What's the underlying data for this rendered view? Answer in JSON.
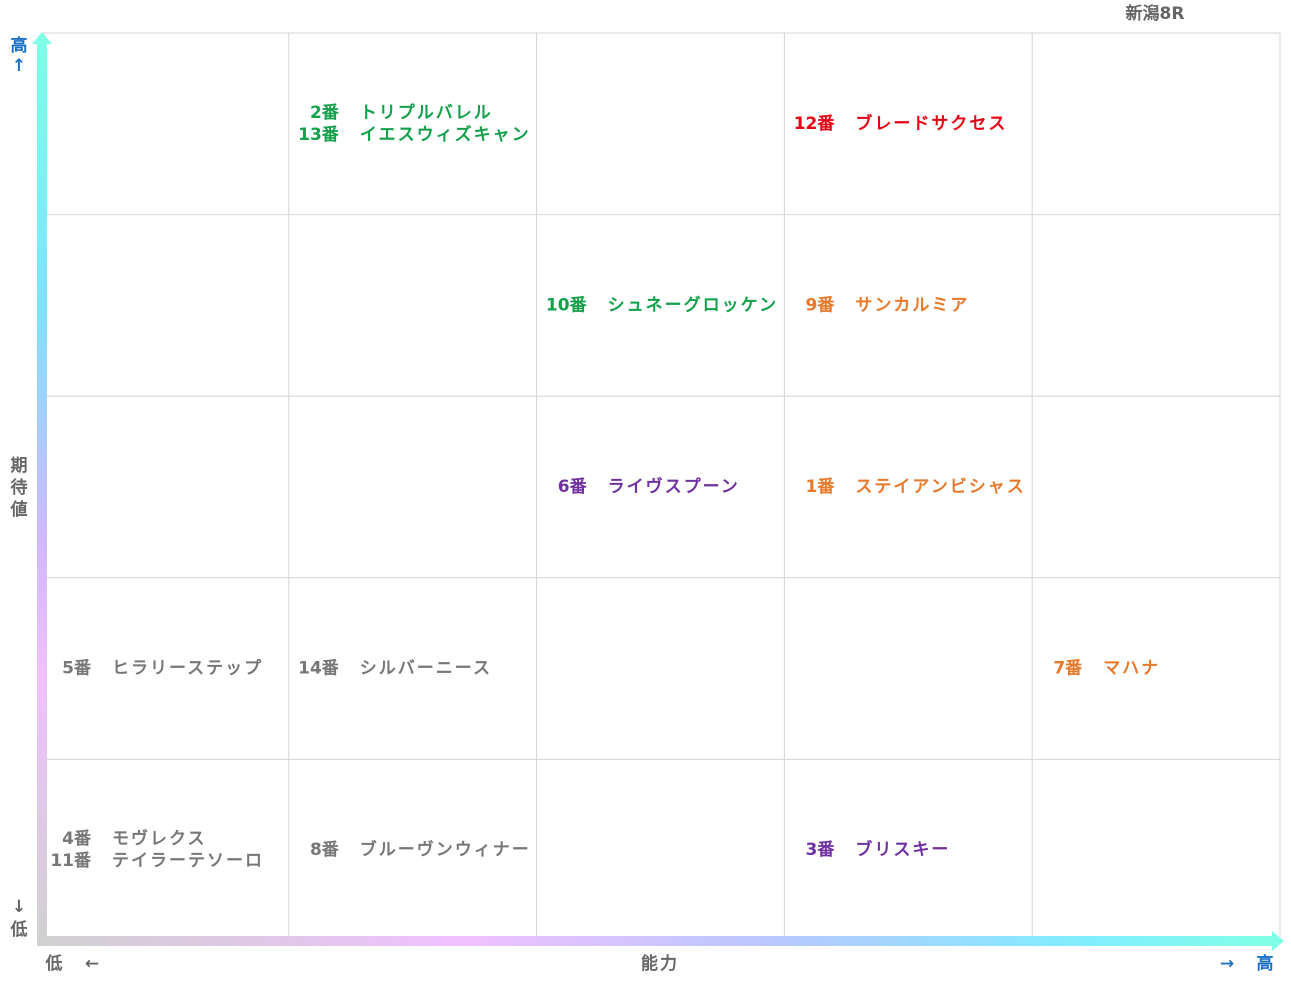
{
  "title": "新潟8R",
  "y_axis": {
    "label": "期待値",
    "high": "高",
    "high_arrow": "↑",
    "low": "低",
    "low_arrow": "↓"
  },
  "x_axis": {
    "label": "能力",
    "low": "低",
    "low_arrow": "←",
    "high": "高",
    "high_arrow": "→"
  },
  "grid": {
    "rows": [
      [
        [],
        [
          {
            "number": "2番",
            "name": "トリプルバレル",
            "color": "#13a04a"
          },
          {
            "number": "13番",
            "name": "イエスウィズキャン",
            "color": "#13a04a"
          }
        ],
        [],
        [
          {
            "number": "12番",
            "name": "ブレードサクセス",
            "color": "#e60012"
          }
        ],
        []
      ],
      [
        [],
        [],
        [
          {
            "number": "10番",
            "name": "シュネーグロッケン",
            "color": "#13a04a"
          }
        ],
        [
          {
            "number": "9番",
            "name": "サンカルミア",
            "color": "#e8782a"
          }
        ],
        []
      ],
      [
        [],
        [],
        [
          {
            "number": "6番",
            "name": "ライヴスプーン",
            "color": "#7030a0"
          }
        ],
        [
          {
            "number": "1番",
            "name": "ステイアンビシャス",
            "color": "#e8782a"
          }
        ],
        []
      ],
      [
        [
          {
            "number": "5番",
            "name": "ヒラリーステップ",
            "color": "#777777"
          }
        ],
        [
          {
            "number": "14番",
            "name": "シルバーニース",
            "color": "#777777"
          }
        ],
        [],
        [],
        [
          {
            "number": "7番",
            "name": "マハナ",
            "color": "#e8782a"
          }
        ]
      ],
      [
        [
          {
            "number": "4番",
            "name": "モヴレクス",
            "color": "#777777"
          },
          {
            "number": "11番",
            "name": "テイラーテソーロ",
            "color": "#777777"
          }
        ],
        [
          {
            "number": "8番",
            "name": "ブルーヴンウィナー",
            "color": "#777777"
          }
        ],
        [],
        [
          {
            "number": "3番",
            "name": "ブリスキー",
            "color": "#7030a0"
          }
        ],
        []
      ]
    ]
  }
}
